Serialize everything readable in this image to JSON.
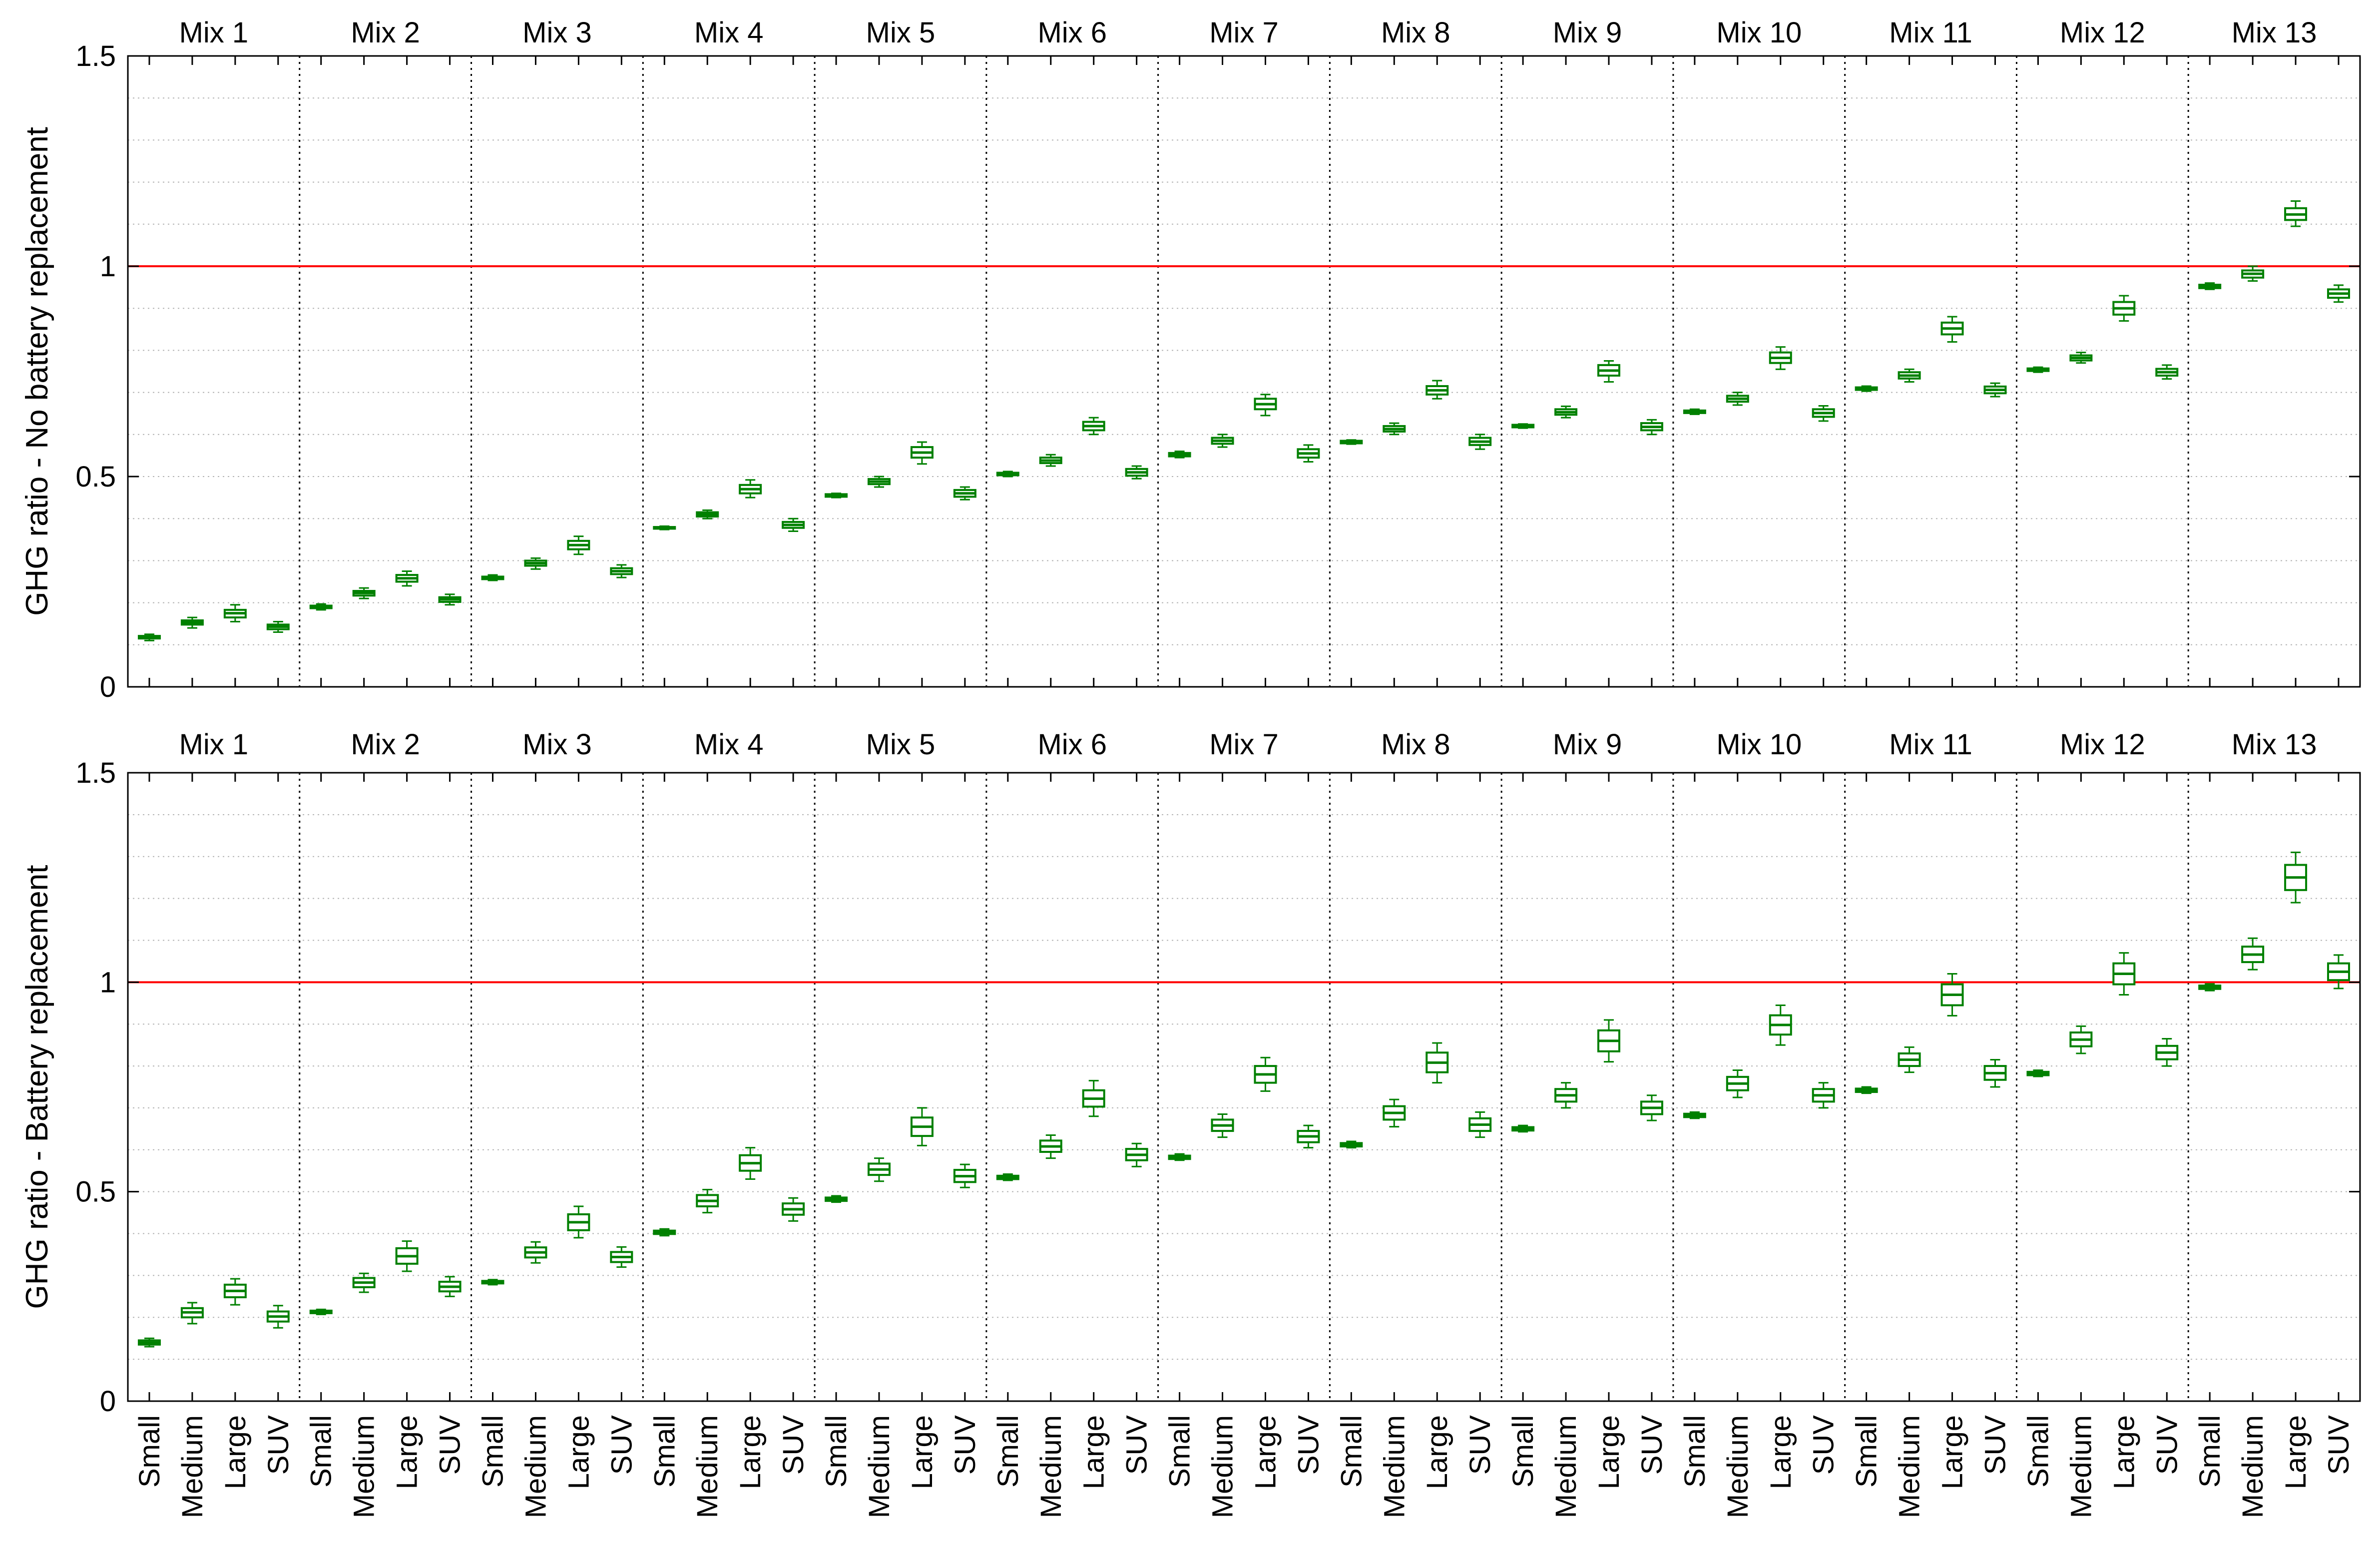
{
  "colors": {
    "box": "#008000",
    "reference_line": "#ff0000",
    "axes": "#000000",
    "grid": "#b4b4b4",
    "background": "#ffffff"
  },
  "mixes": [
    "Mix 1",
    "Mix 2",
    "Mix 3",
    "Mix 4",
    "Mix 5",
    "Mix 6",
    "Mix 7",
    "Mix 8",
    "Mix 9",
    "Mix 10",
    "Mix 11",
    "Mix 12",
    "Mix 13"
  ],
  "vehicles": [
    "Small",
    "Medium",
    "Large",
    "SUV"
  ],
  "chart_data": [
    {
      "type": "box",
      "ylabel": "GHG ratio - No battery replacement",
      "ylim": [
        0,
        1.5
      ],
      "yticks": [
        0,
        0.5,
        1,
        1.5
      ],
      "ytick_labels": [
        "0",
        "0.5",
        "1",
        "1.5"
      ],
      "grid": "dotted, minor every 0.1",
      "reference_line": 1,
      "categories": [
        "Small",
        "Medium",
        "Large",
        "SUV"
      ],
      "groups": [
        "Mix 1",
        "Mix 2",
        "Mix 3",
        "Mix 4",
        "Mix 5",
        "Mix 6",
        "Mix 7",
        "Mix 8",
        "Mix 9",
        "Mix 10",
        "Mix 11",
        "Mix 12",
        "Mix 13"
      ],
      "boxes": [
        [
          [
            0.11,
            0.115,
            0.118,
            0.121,
            0.125
          ],
          [
            0.14,
            0.148,
            0.153,
            0.158,
            0.165
          ],
          [
            0.155,
            0.165,
            0.175,
            0.183,
            0.195
          ],
          [
            0.13,
            0.137,
            0.143,
            0.148,
            0.155
          ]
        ],
        [
          [
            0.183,
            0.187,
            0.19,
            0.193,
            0.197
          ],
          [
            0.21,
            0.217,
            0.223,
            0.228,
            0.235
          ],
          [
            0.24,
            0.25,
            0.258,
            0.266,
            0.275
          ],
          [
            0.195,
            0.202,
            0.208,
            0.213,
            0.22
          ]
        ],
        [
          [
            0.253,
            0.256,
            0.259,
            0.262,
            0.266
          ],
          [
            0.28,
            0.288,
            0.294,
            0.3,
            0.306
          ],
          [
            0.315,
            0.327,
            0.337,
            0.347,
            0.358
          ],
          [
            0.26,
            0.268,
            0.275,
            0.282,
            0.29
          ]
        ],
        [
          [
            0.374,
            0.376,
            0.378,
            0.38,
            0.382
          ],
          [
            0.4,
            0.405,
            0.41,
            0.415,
            0.42
          ],
          [
            0.45,
            0.46,
            0.47,
            0.48,
            0.492
          ],
          [
            0.37,
            0.378,
            0.385,
            0.392,
            0.4
          ]
        ],
        [
          [
            0.45,
            0.452,
            0.455,
            0.458,
            0.46
          ],
          [
            0.475,
            0.482,
            0.488,
            0.494,
            0.5
          ],
          [
            0.53,
            0.545,
            0.557,
            0.57,
            0.582
          ],
          [
            0.445,
            0.452,
            0.46,
            0.468,
            0.475
          ]
        ],
        [
          [
            0.5,
            0.503,
            0.506,
            0.509,
            0.512
          ],
          [
            0.525,
            0.532,
            0.538,
            0.545,
            0.552
          ],
          [
            0.6,
            0.61,
            0.62,
            0.63,
            0.64
          ],
          [
            0.495,
            0.502,
            0.51,
            0.518,
            0.525
          ]
        ],
        [
          [
            0.545,
            0.548,
            0.552,
            0.556,
            0.56
          ],
          [
            0.57,
            0.578,
            0.585,
            0.592,
            0.6
          ],
          [
            0.645,
            0.66,
            0.672,
            0.685,
            0.695
          ],
          [
            0.535,
            0.545,
            0.555,
            0.565,
            0.575
          ]
        ],
        [
          [
            0.577,
            0.579,
            0.582,
            0.585,
            0.587
          ],
          [
            0.6,
            0.607,
            0.613,
            0.62,
            0.627
          ],
          [
            0.685,
            0.695,
            0.705,
            0.715,
            0.728
          ],
          [
            0.565,
            0.575,
            0.583,
            0.592,
            0.6
          ]
        ],
        [
          [
            0.615,
            0.617,
            0.62,
            0.623,
            0.625
          ],
          [
            0.64,
            0.647,
            0.653,
            0.66,
            0.667
          ],
          [
            0.725,
            0.74,
            0.752,
            0.765,
            0.775
          ],
          [
            0.6,
            0.61,
            0.618,
            0.627,
            0.635
          ]
        ],
        [
          [
            0.648,
            0.651,
            0.654,
            0.657,
            0.66
          ],
          [
            0.67,
            0.678,
            0.685,
            0.692,
            0.7
          ],
          [
            0.755,
            0.77,
            0.782,
            0.795,
            0.808
          ],
          [
            0.632,
            0.642,
            0.651,
            0.66,
            0.668
          ]
        ],
        [
          [
            0.703,
            0.706,
            0.709,
            0.712,
            0.715
          ],
          [
            0.725,
            0.733,
            0.74,
            0.748,
            0.755
          ],
          [
            0.82,
            0.838,
            0.852,
            0.866,
            0.88
          ],
          [
            0.69,
            0.698,
            0.706,
            0.714,
            0.722
          ]
        ],
        [
          [
            0.748,
            0.751,
            0.754,
            0.757,
            0.76
          ],
          [
            0.77,
            0.776,
            0.782,
            0.788,
            0.795
          ],
          [
            0.87,
            0.885,
            0.9,
            0.915,
            0.93
          ],
          [
            0.732,
            0.74,
            0.748,
            0.756,
            0.765
          ]
        ],
        [
          [
            0.945,
            0.948,
            0.952,
            0.956,
            0.96
          ],
          [
            0.965,
            0.973,
            0.982,
            0.99,
            1.0
          ],
          [
            1.095,
            1.11,
            1.123,
            1.138,
            1.155
          ],
          [
            0.915,
            0.925,
            0.935,
            0.945,
            0.955
          ]
        ]
      ]
    },
    {
      "type": "box",
      "ylabel": "GHG ratio - Battery replacement",
      "ylim": [
        0,
        1.5
      ],
      "yticks": [
        0,
        0.5,
        1,
        1.5
      ],
      "ytick_labels": [
        "0",
        "0.5",
        "1",
        "1.5"
      ],
      "grid": "dotted, minor every 0.1",
      "reference_line": 1,
      "categories": [
        "Small",
        "Medium",
        "Large",
        "SUV"
      ],
      "groups": [
        "Mix 1",
        "Mix 2",
        "Mix 3",
        "Mix 4",
        "Mix 5",
        "Mix 6",
        "Mix 7",
        "Mix 8",
        "Mix 9",
        "Mix 10",
        "Mix 11",
        "Mix 12",
        "Mix 13"
      ],
      "boxes": [
        [
          [
            0.13,
            0.135,
            0.14,
            0.145,
            0.15
          ],
          [
            0.185,
            0.2,
            0.212,
            0.222,
            0.235
          ],
          [
            0.23,
            0.248,
            0.263,
            0.278,
            0.292
          ],
          [
            0.175,
            0.19,
            0.202,
            0.214,
            0.228
          ]
        ],
        [
          [
            0.207,
            0.21,
            0.213,
            0.216,
            0.219
          ],
          [
            0.26,
            0.272,
            0.283,
            0.294,
            0.305
          ],
          [
            0.31,
            0.328,
            0.346,
            0.365,
            0.382
          ],
          [
            0.25,
            0.262,
            0.273,
            0.285,
            0.297
          ]
        ],
        [
          [
            0.278,
            0.281,
            0.284,
            0.287,
            0.29
          ],
          [
            0.33,
            0.343,
            0.355,
            0.367,
            0.38
          ],
          [
            0.39,
            0.408,
            0.427,
            0.446,
            0.465
          ],
          [
            0.32,
            0.332,
            0.344,
            0.356,
            0.368
          ]
        ],
        [
          [
            0.395,
            0.399,
            0.403,
            0.407,
            0.411
          ],
          [
            0.45,
            0.465,
            0.478,
            0.492,
            0.505
          ],
          [
            0.53,
            0.55,
            0.568,
            0.587,
            0.605
          ],
          [
            0.43,
            0.445,
            0.458,
            0.472,
            0.485
          ]
        ],
        [
          [
            0.475,
            0.478,
            0.482,
            0.486,
            0.49
          ],
          [
            0.525,
            0.54,
            0.553,
            0.567,
            0.58
          ],
          [
            0.61,
            0.633,
            0.655,
            0.677,
            0.7
          ],
          [
            0.51,
            0.523,
            0.537,
            0.552,
            0.565
          ]
        ],
        [
          [
            0.527,
            0.53,
            0.534,
            0.538,
            0.542
          ],
          [
            0.58,
            0.595,
            0.608,
            0.622,
            0.635
          ],
          [
            0.68,
            0.703,
            0.722,
            0.742,
            0.765
          ],
          [
            0.56,
            0.575,
            0.588,
            0.602,
            0.615
          ]
        ],
        [
          [
            0.575,
            0.578,
            0.582,
            0.586,
            0.59
          ],
          [
            0.63,
            0.645,
            0.658,
            0.672,
            0.685
          ],
          [
            0.74,
            0.76,
            0.78,
            0.8,
            0.82
          ],
          [
            0.605,
            0.618,
            0.632,
            0.645,
            0.658
          ]
        ],
        [
          [
            0.605,
            0.608,
            0.612,
            0.616,
            0.62
          ],
          [
            0.655,
            0.672,
            0.688,
            0.704,
            0.72
          ],
          [
            0.76,
            0.785,
            0.808,
            0.832,
            0.855
          ],
          [
            0.63,
            0.645,
            0.66,
            0.675,
            0.69
          ]
        ],
        [
          [
            0.643,
            0.646,
            0.65,
            0.654,
            0.658
          ],
          [
            0.7,
            0.715,
            0.73,
            0.745,
            0.76
          ],
          [
            0.81,
            0.835,
            0.86,
            0.885,
            0.91
          ],
          [
            0.67,
            0.685,
            0.7,
            0.715,
            0.73
          ]
        ],
        [
          [
            0.675,
            0.678,
            0.682,
            0.686,
            0.69
          ],
          [
            0.725,
            0.742,
            0.758,
            0.774,
            0.79
          ],
          [
            0.85,
            0.875,
            0.898,
            0.921,
            0.945
          ],
          [
            0.7,
            0.715,
            0.73,
            0.745,
            0.76
          ]
        ],
        [
          [
            0.735,
            0.738,
            0.742,
            0.746,
            0.75
          ],
          [
            0.785,
            0.8,
            0.815,
            0.83,
            0.845
          ],
          [
            0.92,
            0.945,
            0.97,
            0.995,
            1.02
          ],
          [
            0.75,
            0.767,
            0.783,
            0.8,
            0.815
          ]
        ],
        [
          [
            0.775,
            0.778,
            0.782,
            0.786,
            0.79
          ],
          [
            0.83,
            0.847,
            0.863,
            0.88,
            0.895
          ],
          [
            0.97,
            0.995,
            1.02,
            1.045,
            1.07
          ],
          [
            0.8,
            0.816,
            0.832,
            0.848,
            0.865
          ]
        ],
        [
          [
            0.98,
            0.984,
            0.988,
            0.992,
            0.996
          ],
          [
            1.03,
            1.048,
            1.066,
            1.085,
            1.105
          ],
          [
            1.19,
            1.22,
            1.25,
            1.28,
            1.31
          ],
          [
            0.985,
            1.005,
            1.025,
            1.045,
            1.065
          ]
        ]
      ]
    }
  ]
}
